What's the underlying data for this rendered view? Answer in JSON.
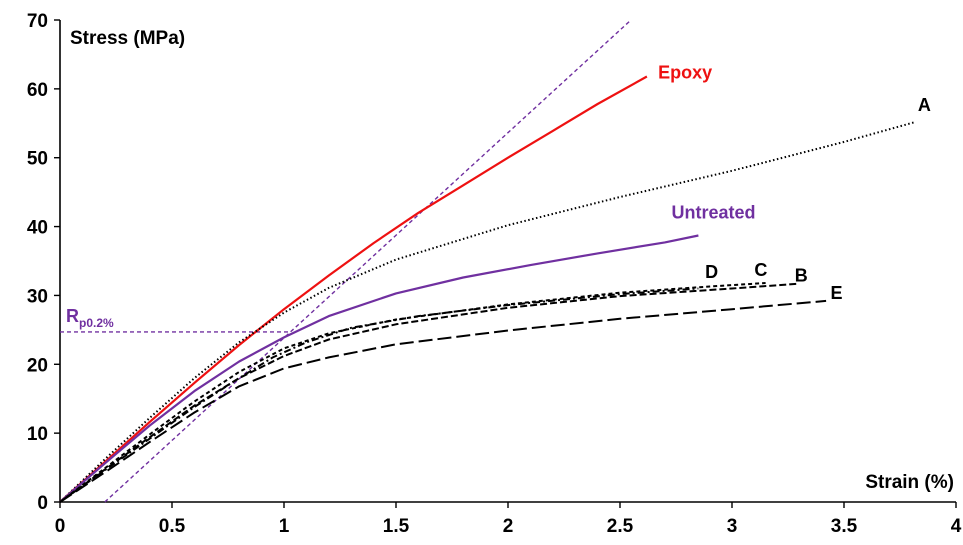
{
  "chart_data": {
    "type": "line",
    "xlabel": "Strain (%)",
    "ylabel": "Stress (MPa)",
    "xlim": [
      0,
      4
    ],
    "ylim": [
      0,
      70
    ],
    "x_ticks": [
      "0",
      "0.5",
      "1",
      "1.5",
      "2",
      "2.5",
      "3",
      "3.5",
      "4"
    ],
    "y_ticks": [
      "0",
      "10",
      "20",
      "30",
      "40",
      "50",
      "60",
      "70"
    ],
    "grid": false,
    "legend": "none",
    "colors": {
      "epoxy": "#ee1111",
      "untreated": "#7030a0",
      "black": "#000000",
      "offset": "#7030a0"
    },
    "series": [
      {
        "name": "Epoxy",
        "color": "#ee1111",
        "style": "solid",
        "points": [
          [
            0,
            0
          ],
          [
            0.2,
            5.8
          ],
          [
            0.4,
            11.6
          ],
          [
            0.6,
            17.3
          ],
          [
            0.8,
            22.8
          ],
          [
            1.0,
            28.0
          ],
          [
            1.2,
            32.9
          ],
          [
            1.4,
            37.6
          ],
          [
            1.6,
            42.0
          ],
          [
            1.8,
            46.0
          ],
          [
            2.0,
            50.0
          ],
          [
            2.2,
            53.9
          ],
          [
            2.4,
            57.8
          ],
          [
            2.62,
            61.8
          ]
        ]
      },
      {
        "name": "A",
        "color": "#000000",
        "style": "dotted",
        "points": [
          [
            0,
            0
          ],
          [
            0.2,
            6.2
          ],
          [
            0.4,
            12.2
          ],
          [
            0.6,
            18.0
          ],
          [
            0.8,
            23.2
          ],
          [
            1.0,
            27.5
          ],
          [
            1.2,
            31.1
          ],
          [
            1.5,
            35.2
          ],
          [
            2.0,
            40.2
          ],
          [
            2.5,
            44.3
          ],
          [
            3.0,
            48.1
          ],
          [
            3.5,
            52.3
          ],
          [
            3.82,
            55.2
          ]
        ]
      },
      {
        "name": "Untreated",
        "color": "#7030a0",
        "style": "solid",
        "points": [
          [
            0,
            0
          ],
          [
            0.2,
            5.6
          ],
          [
            0.4,
            11.1
          ],
          [
            0.6,
            16.1
          ],
          [
            0.8,
            20.4
          ],
          [
            1.0,
            23.9
          ],
          [
            1.2,
            27.0
          ],
          [
            1.5,
            30.3
          ],
          [
            1.8,
            32.6
          ],
          [
            2.1,
            34.4
          ],
          [
            2.4,
            36.1
          ],
          [
            2.7,
            37.7
          ],
          [
            2.85,
            38.7
          ]
        ]
      },
      {
        "name": "D",
        "color": "#000000",
        "style": "dashdot",
        "points": [
          [
            0,
            0
          ],
          [
            0.2,
            4.6
          ],
          [
            0.4,
            9.2
          ],
          [
            0.6,
            13.8
          ],
          [
            0.8,
            18.0
          ],
          [
            0.95,
            21.0
          ],
          [
            1.1,
            23.2
          ],
          [
            1.3,
            25.3
          ],
          [
            1.6,
            27.0
          ],
          [
            2.0,
            28.6
          ],
          [
            2.5,
            30.2
          ],
          [
            2.85,
            31.0
          ]
        ]
      },
      {
        "name": "C",
        "color": "#000000",
        "style": "dashed-short",
        "points": [
          [
            0,
            0
          ],
          [
            0.2,
            4.9
          ],
          [
            0.4,
            9.8
          ],
          [
            0.6,
            14.6
          ],
          [
            0.8,
            18.9
          ],
          [
            1.0,
            22.3
          ],
          [
            1.2,
            24.5
          ],
          [
            1.5,
            26.5
          ],
          [
            2.0,
            28.7
          ],
          [
            2.5,
            30.4
          ],
          [
            2.9,
            31.3
          ],
          [
            3.15,
            31.8
          ]
        ]
      },
      {
        "name": "B",
        "color": "#000000",
        "style": "dashed-medium",
        "points": [
          [
            0,
            0
          ],
          [
            0.2,
            4.7
          ],
          [
            0.4,
            9.4
          ],
          [
            0.6,
            14.0
          ],
          [
            0.8,
            18.0
          ],
          [
            1.0,
            21.2
          ],
          [
            1.2,
            23.6
          ],
          [
            1.5,
            25.8
          ],
          [
            2.0,
            28.2
          ],
          [
            2.5,
            29.9
          ],
          [
            3.0,
            31.0
          ],
          [
            3.3,
            31.7
          ]
        ]
      },
      {
        "name": "E",
        "color": "#000000",
        "style": "dashed-long",
        "points": [
          [
            0,
            0
          ],
          [
            0.2,
            4.3
          ],
          [
            0.4,
            8.7
          ],
          [
            0.6,
            13.0
          ],
          [
            0.8,
            16.8
          ],
          [
            1.0,
            19.4
          ],
          [
            1.2,
            21.0
          ],
          [
            1.5,
            22.9
          ],
          [
            2.0,
            24.9
          ],
          [
            2.5,
            26.6
          ],
          [
            3.0,
            28.0
          ],
          [
            3.42,
            29.2
          ]
        ]
      }
    ],
    "annotations": {
      "offset_line": {
        "x_start": 0.2,
        "slope": 29.8,
        "label": ""
      },
      "rp_line": {
        "y": 24.7,
        "x_end": 1.03
      },
      "rp_label_main": "R",
      "rp_label_sub": "p0.2%"
    },
    "labels": [
      {
        "id": "epoxy",
        "text": "Epoxy",
        "x": 2.67,
        "y": 61.5,
        "color": "#ee1111"
      },
      {
        "id": "untreated",
        "text": "Untreated",
        "x": 2.73,
        "y": 41.2,
        "color": "#7030a0"
      },
      {
        "id": "a",
        "text": "A",
        "x": 3.83,
        "y": 56.8,
        "color": "#000000"
      },
      {
        "id": "d",
        "text": "D",
        "x": 2.88,
        "y": 32.5,
        "color": "#000000"
      },
      {
        "id": "c",
        "text": "C",
        "x": 3.1,
        "y": 32.8,
        "color": "#000000"
      },
      {
        "id": "b",
        "text": "B",
        "x": 3.28,
        "y": 32.0,
        "color": "#000000"
      },
      {
        "id": "e",
        "text": "E",
        "x": 3.44,
        "y": 29.5,
        "color": "#000000"
      }
    ]
  }
}
